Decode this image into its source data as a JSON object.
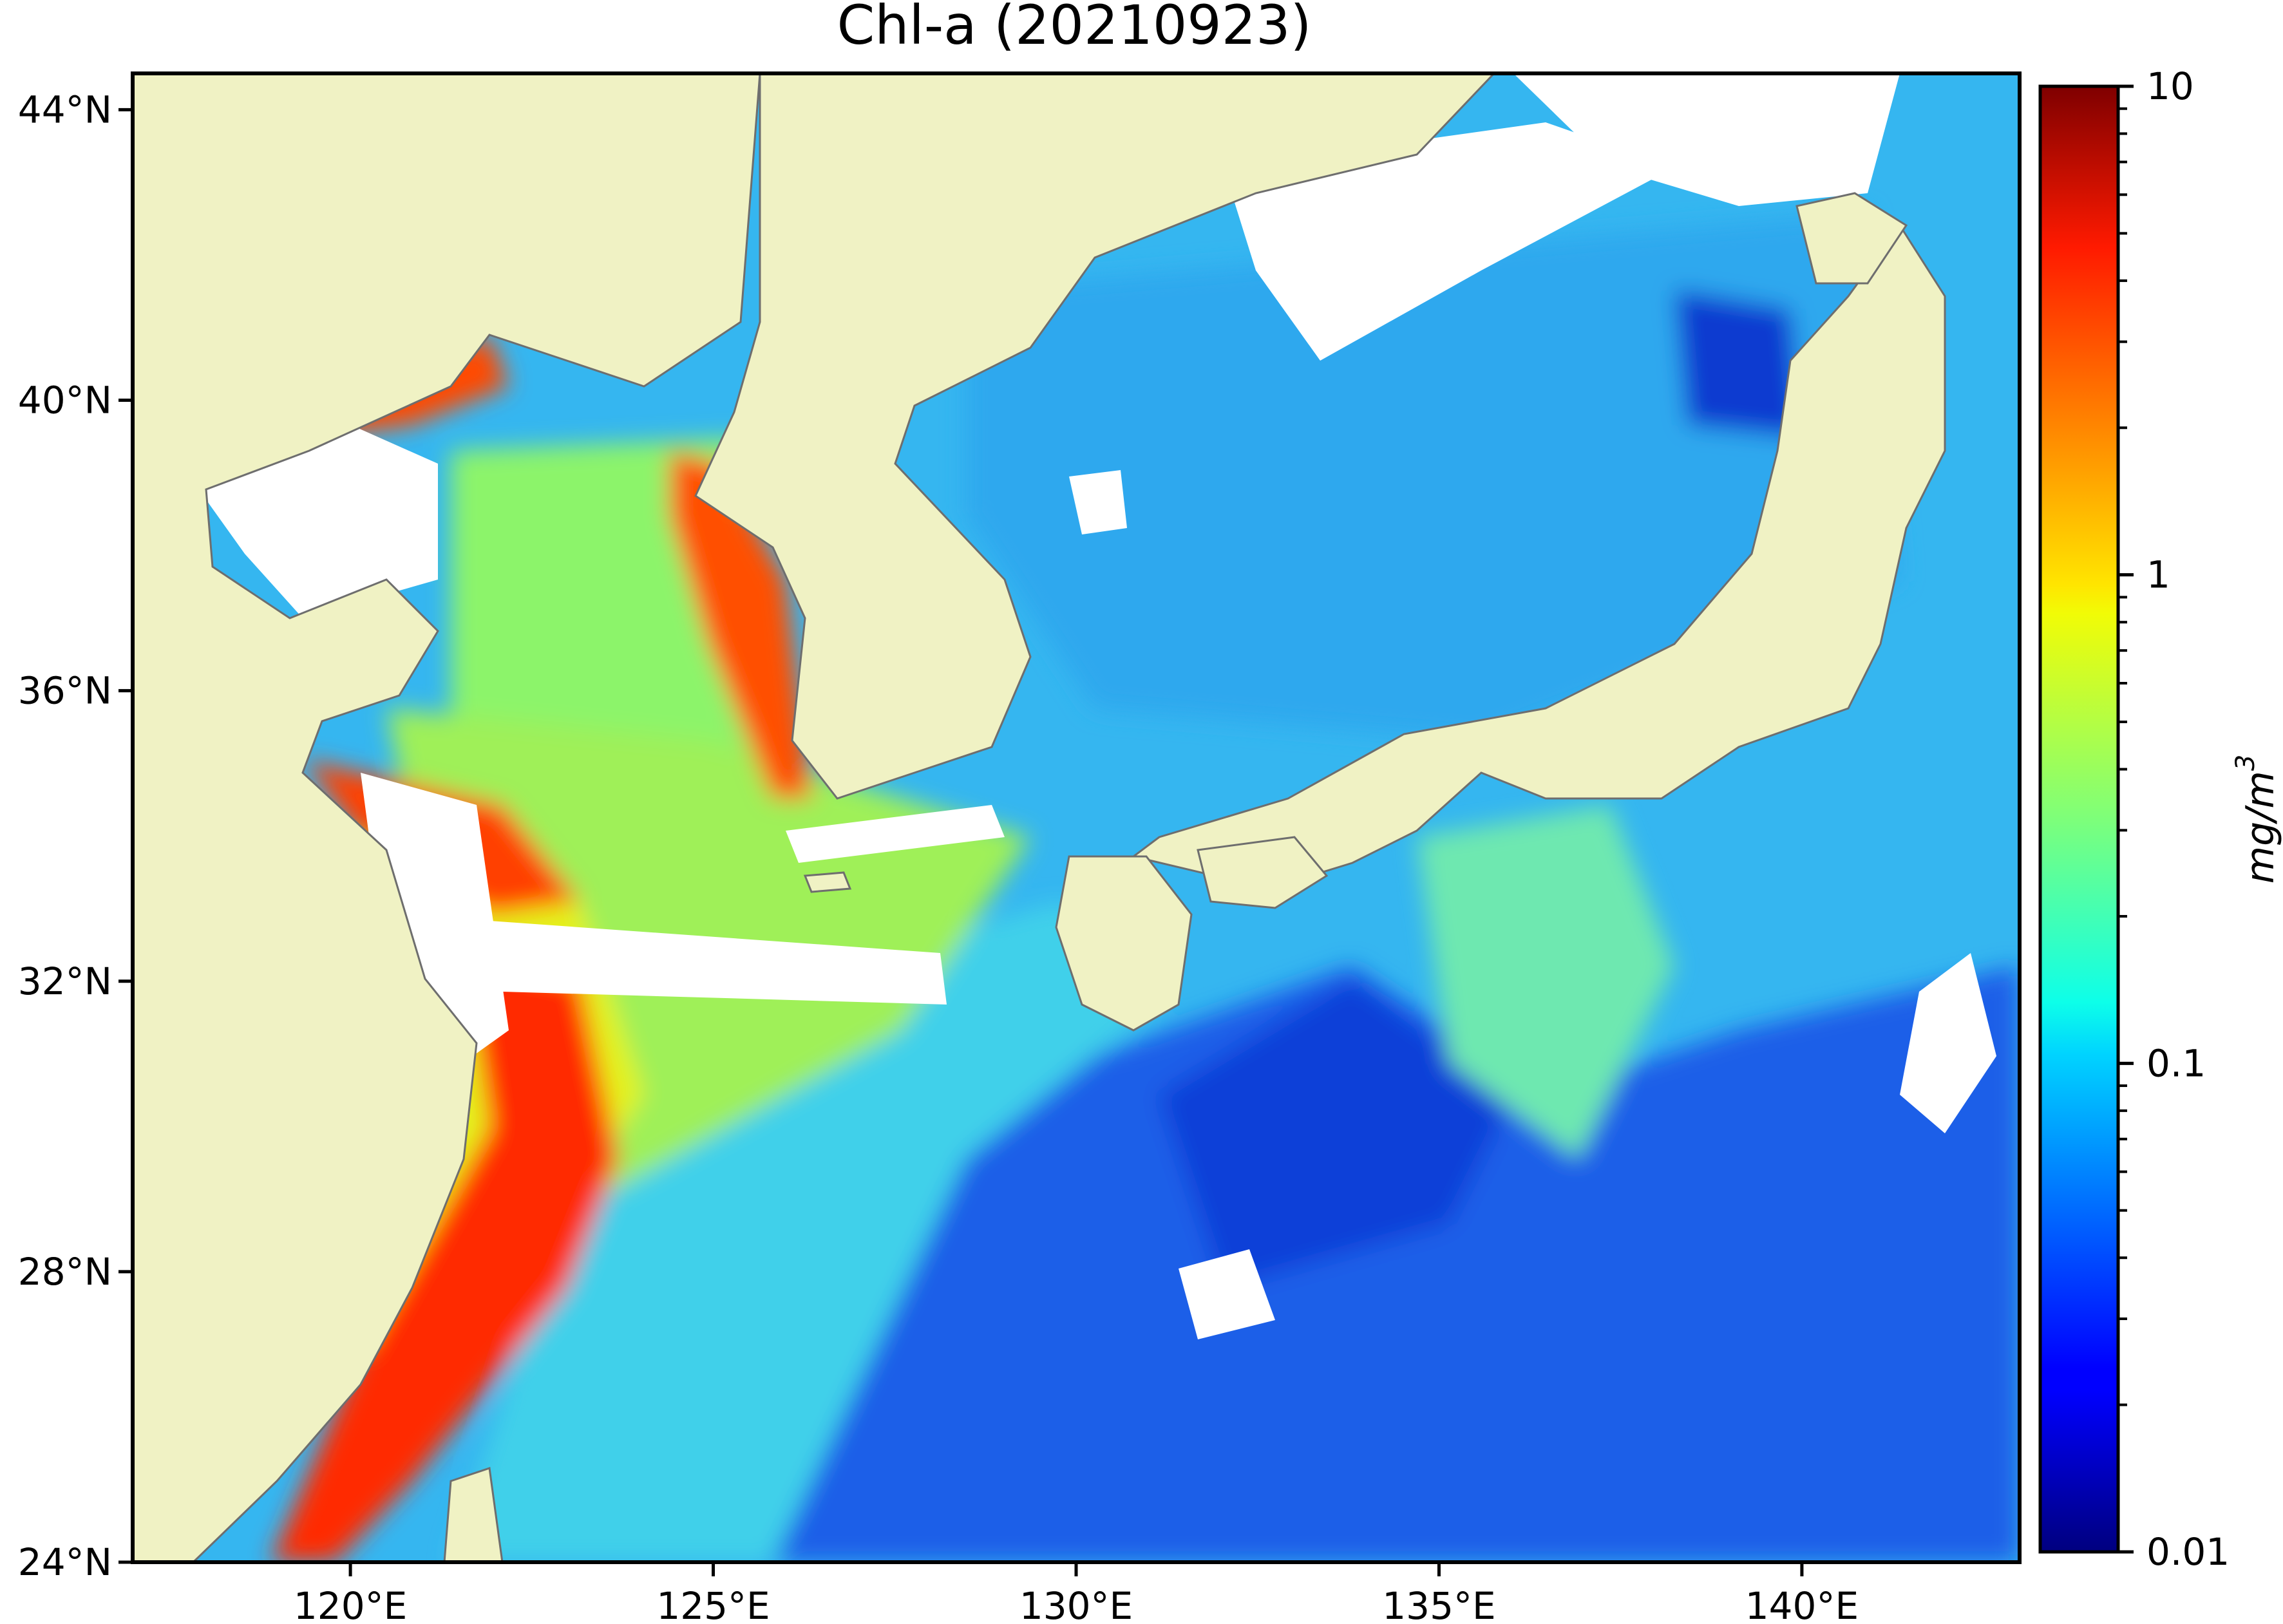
{
  "title": "Chl-a (20210923)",
  "map": {
    "lon_range": [
      117,
      143
    ],
    "lat_range": [
      24,
      44.5
    ],
    "lat_ticks": [
      {
        "value": 44,
        "label": "44°N"
      },
      {
        "value": 40,
        "label": "40°N"
      },
      {
        "value": 36,
        "label": "36°N"
      },
      {
        "value": 32,
        "label": "32°N"
      },
      {
        "value": 28,
        "label": "28°N"
      },
      {
        "value": 24,
        "label": "24°N"
      }
    ],
    "lon_ticks": [
      {
        "value": 120,
        "label": "120°E"
      },
      {
        "value": 125,
        "label": "125°E"
      },
      {
        "value": 130,
        "label": "130°E"
      },
      {
        "value": 135,
        "label": "135°E"
      },
      {
        "value": 140,
        "label": "140°E"
      }
    ],
    "colors": {
      "land": "#f0f2c4",
      "coast": "#6e6e6e",
      "missing": "#ffffff"
    }
  },
  "colorbar": {
    "label": "mg/m",
    "label_sup": "3",
    "scale": "log",
    "range": [
      0.01,
      10
    ],
    "ticks": [
      {
        "value": 10,
        "label": "10"
      },
      {
        "value": 1,
        "label": "1"
      },
      {
        "value": 0.1,
        "label": "0.1"
      },
      {
        "value": 0.01,
        "label": "0.01"
      }
    ],
    "colormap": "jet"
  }
}
